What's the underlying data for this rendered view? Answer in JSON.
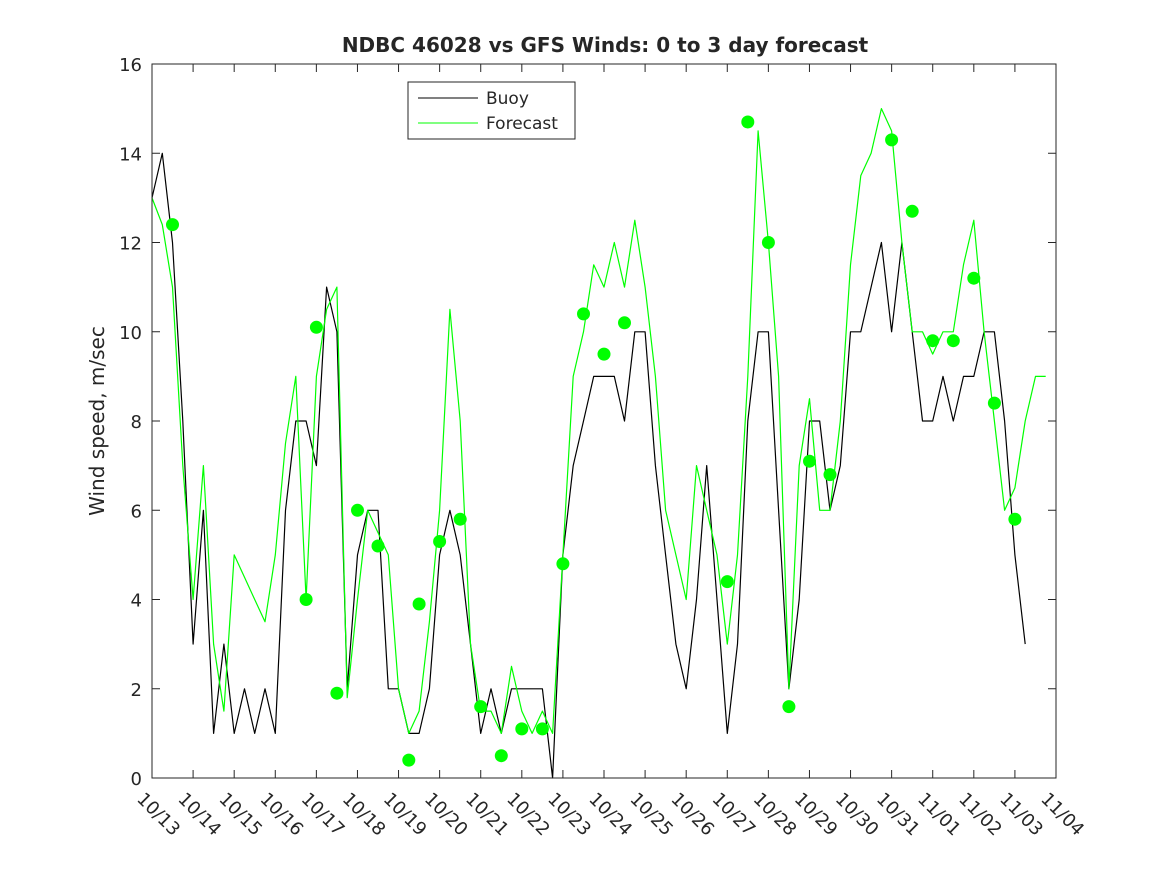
{
  "chart_data": {
    "type": "line",
    "title": "NDBC 46028 vs GFS Winds: 0 to 3 day forecast",
    "xlabel": "",
    "ylabel": "Wind speed, m/sec",
    "xlim": [
      "10/13",
      "11/04"
    ],
    "ylim": [
      0,
      16
    ],
    "yticks": [
      0,
      2,
      4,
      6,
      8,
      10,
      12,
      14,
      16
    ],
    "xtick_labels": [
      "10/13",
      "10/14",
      "10/15",
      "10/16",
      "10/17",
      "10/18",
      "10/19",
      "10/20",
      "10/21",
      "10/22",
      "10/23",
      "10/24",
      "10/25",
      "10/26",
      "10/27",
      "10/28",
      "10/29",
      "10/30",
      "10/31",
      "11/01",
      "11/02",
      "11/03",
      "11/04"
    ],
    "grid": false,
    "legend": {
      "placement": "top-center",
      "entries": [
        "Buoy",
        "Forecast"
      ]
    },
    "colors": {
      "buoy": "#000000",
      "forecast": "#00ff00",
      "axes": "#262626"
    },
    "series": [
      {
        "name": "Buoy",
        "x": [
          "10/13 00:00",
          "10/13 06:00",
          "10/13 12:00",
          "10/13 18:00",
          "10/14 00:00",
          "10/14 06:00",
          "10/14 12:00",
          "10/14 18:00",
          "10/15 00:00",
          "10/15 06:00",
          "10/15 12:00",
          "10/15 18:00",
          "10/16 00:00",
          "10/16 06:00",
          "10/16 12:00",
          "10/16 18:00",
          "10/17 00:00",
          "10/17 06:00",
          "10/17 12:00",
          "10/17 18:00",
          "10/18 00:00",
          "10/18 06:00",
          "10/18 12:00",
          "10/18 18:00",
          "10/19 00:00",
          "10/19 06:00",
          "10/19 12:00",
          "10/19 18:00",
          "10/20 00:00",
          "10/20 06:00",
          "10/20 12:00",
          "10/20 18:00",
          "10/21 00:00",
          "10/21 06:00",
          "10/21 12:00",
          "10/21 18:00",
          "10/22 00:00",
          "10/22 06:00",
          "10/22 12:00",
          "10/22 18:00",
          "10/23 00:00",
          "10/23 06:00",
          "10/23 12:00",
          "10/23 18:00",
          "10/24 00:00",
          "10/24 06:00",
          "10/24 12:00",
          "10/24 18:00",
          "10/25 00:00",
          "10/25 06:00",
          "10/25 12:00",
          "10/25 18:00",
          "10/26 00:00",
          "10/26 06:00",
          "10/26 12:00",
          "10/26 18:00",
          "10/27 00:00",
          "10/27 06:00",
          "10/27 12:00",
          "10/27 18:00",
          "10/28 00:00",
          "10/28 06:00",
          "10/28 12:00",
          "10/28 18:00",
          "10/29 00:00",
          "10/29 06:00",
          "10/29 12:00",
          "10/29 18:00",
          "10/30 00:00",
          "10/30 06:00",
          "10/30 12:00",
          "10/30 18:00",
          "10/31 00:00",
          "10/31 06:00",
          "10/31 12:00",
          "10/31 18:00",
          "11/01 00:00",
          "11/01 06:00",
          "11/01 12:00",
          "11/01 18:00",
          "11/02 00:00",
          "11/02 06:00",
          "11/02 12:00",
          "11/02 18:00",
          "11/03 00:00",
          "11/03 06:00"
        ],
        "values": [
          13,
          14,
          12,
          8,
          3,
          6,
          1,
          3,
          1,
          2,
          1,
          2,
          1,
          6,
          8,
          8,
          7,
          11,
          10,
          2,
          5,
          6,
          6,
          2,
          2,
          1,
          1,
          2,
          5,
          6,
          5,
          3,
          1,
          2,
          1,
          2,
          2,
          2,
          2,
          0,
          5,
          7,
          8,
          9,
          9,
          9,
          8,
          10,
          10,
          7,
          5,
          3,
          2,
          4,
          7,
          4,
          1,
          3,
          8,
          10,
          10,
          6,
          2,
          4,
          8,
          8,
          6,
          7,
          10,
          10,
          11,
          12,
          10,
          12,
          10,
          8,
          8,
          9,
          8,
          9,
          9,
          10,
          10,
          8,
          5,
          3
        ]
      },
      {
        "name": "Forecast",
        "x": [
          "10/13 00:00",
          "10/13 06:00",
          "10/13 12:00",
          "10/13 18:00",
          "10/14 00:00",
          "10/14 06:00",
          "10/14 12:00",
          "10/14 18:00",
          "10/15 00:00",
          "10/15 06:00",
          "10/15 12:00",
          "10/15 18:00",
          "10/16 00:00",
          "10/16 06:00",
          "10/16 12:00",
          "10/16 18:00",
          "10/17 00:00",
          "10/17 06:00",
          "10/17 12:00",
          "10/17 18:00",
          "10/18 00:00",
          "10/18 06:00",
          "10/18 12:00",
          "10/18 18:00",
          "10/19 00:00",
          "10/19 06:00",
          "10/19 12:00",
          "10/19 18:00",
          "10/20 00:00",
          "10/20 06:00",
          "10/20 12:00",
          "10/20 18:00",
          "10/21 00:00",
          "10/21 06:00",
          "10/21 12:00",
          "10/21 18:00",
          "10/22 00:00",
          "10/22 06:00",
          "10/22 12:00",
          "10/22 18:00",
          "10/23 00:00",
          "10/23 06:00",
          "10/23 12:00",
          "10/23 18:00",
          "10/24 00:00",
          "10/24 06:00",
          "10/24 12:00",
          "10/24 18:00",
          "10/25 00:00",
          "10/25 06:00",
          "10/25 12:00",
          "10/25 18:00",
          "10/26 00:00",
          "10/26 06:00",
          "10/26 12:00",
          "10/26 18:00",
          "10/27 00:00",
          "10/27 06:00",
          "10/27 12:00",
          "10/27 18:00",
          "10/28 00:00",
          "10/28 06:00",
          "10/28 12:00",
          "10/28 18:00",
          "10/29 00:00",
          "10/29 06:00",
          "10/29 12:00",
          "10/29 18:00",
          "10/30 00:00",
          "10/30 06:00",
          "10/30 12:00",
          "10/30 18:00",
          "10/31 00:00",
          "10/31 06:00",
          "10/31 12:00",
          "10/31 18:00",
          "11/01 00:00",
          "11/01 06:00",
          "11/01 12:00",
          "11/01 18:00",
          "11/02 00:00",
          "11/02 06:00",
          "11/02 12:00",
          "11/02 18:00",
          "11/03 00:00",
          "11/03 06:00",
          "11/03 12:00",
          "11/03 18:00"
        ],
        "values": [
          13,
          12.4,
          11,
          7,
          4,
          7,
          3,
          1.5,
          5,
          4.5,
          4,
          3.5,
          5,
          7.5,
          9,
          4,
          9,
          10.5,
          11,
          1.8,
          4,
          6,
          5.5,
          5,
          2,
          1,
          1.5,
          3.5,
          6,
          10.5,
          8,
          3,
          1.5,
          1.5,
          1,
          2.5,
          1.5,
          1,
          1.5,
          1,
          5,
          9,
          10,
          11.5,
          11,
          12,
          11,
          12.5,
          11,
          9,
          6,
          5,
          4,
          7,
          6,
          5,
          3,
          5,
          9,
          14.5,
          12,
          9,
          2,
          7,
          8.5,
          6,
          6,
          8,
          11.5,
          13.5,
          14,
          15,
          14.5,
          12,
          10,
          10,
          9.5,
          10,
          10,
          11.5,
          12.5,
          10,
          8,
          6,
          6.5,
          8,
          9,
          9
        ]
      }
    ],
    "markers": {
      "name": "Forecast",
      "x": [
        "10/13 12:00",
        "10/16 18:00",
        "10/17 00:00",
        "10/17 12:00",
        "10/18 00:00",
        "10/18 12:00",
        "10/19 06:00",
        "10/19 12:00",
        "10/20 00:00",
        "10/20 12:00",
        "10/21 00:00",
        "10/21 12:00",
        "10/22 00:00",
        "10/22 12:00",
        "10/23 00:00",
        "10/23 12:00",
        "10/24 00:00",
        "10/24 12:00",
        "10/27 00:00",
        "10/27 12:00",
        "10/28 00:00",
        "10/28 12:00",
        "10/29 00:00",
        "10/29 12:00",
        "10/31 00:00",
        "10/31 12:00",
        "11/01 00:00",
        "11/01 12:00",
        "11/02 00:00",
        "11/02 12:00",
        "11/03 00:00"
      ],
      "values": [
        12.4,
        4.0,
        10.1,
        1.9,
        6.0,
        5.2,
        0.4,
        3.9,
        5.3,
        5.8,
        1.6,
        0.5,
        1.1,
        1.1,
        4.8,
        10.4,
        9.5,
        10.2,
        4.4,
        14.7,
        12.0,
        1.6,
        7.1,
        6.8,
        14.3,
        12.7,
        9.8,
        9.8,
        11.2,
        8.4,
        5.8
      ]
    }
  }
}
